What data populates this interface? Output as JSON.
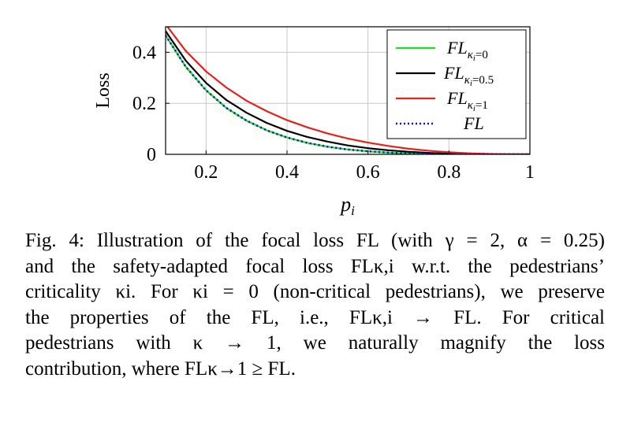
{
  "chart_data": {
    "type": "line",
    "xlabel": "p_i",
    "ylabel": "Loss",
    "xlim": [
      0.1,
      1.0
    ],
    "ylim": [
      0,
      0.5
    ],
    "xticks": [
      0.2,
      0.4,
      0.6,
      0.8,
      1.0
    ],
    "xtick_labels": [
      "0.2",
      "0.4",
      "0.6",
      "0.8",
      "1"
    ],
    "yticks": [
      0,
      0.2,
      0.4
    ],
    "ytick_labels": [
      "0",
      "0.2",
      "0.4"
    ],
    "grid": true,
    "legend_position": "top-right",
    "x": [
      0.1,
      0.15,
      0.2,
      0.25,
      0.3,
      0.35,
      0.4,
      0.45,
      0.5,
      0.55,
      0.6,
      0.65,
      0.7,
      0.75,
      0.8,
      0.85,
      0.9,
      0.95,
      1.0
    ],
    "series": [
      {
        "name": "FL_{κ_i=0}",
        "color": "#22dd22",
        "dash": "solid",
        "values": [
          0.466,
          0.343,
          0.251,
          0.182,
          0.132,
          0.094,
          0.066,
          0.045,
          0.03,
          0.019,
          0.012,
          0.0067,
          0.0036,
          0.0017,
          0.0007,
          0.0002,
          5e-05,
          0.0,
          0.0
        ]
      },
      {
        "name": "FL_{κ_i=0.5}",
        "color": "#000000",
        "dash": "solid",
        "values": [
          0.483,
          0.367,
          0.28,
          0.213,
          0.163,
          0.123,
          0.092,
          0.068,
          0.05,
          0.035,
          0.024,
          0.016,
          0.01,
          0.0056,
          0.0028,
          0.0012,
          0.0004,
          5e-05,
          0.0
        ]
      },
      {
        "name": "FL_{κ_i=1}",
        "color": "#e8201c",
        "dash": "solid",
        "values": [
          0.51,
          0.405,
          0.325,
          0.262,
          0.21,
          0.169,
          0.134,
          0.106,
          0.082,
          0.062,
          0.046,
          0.033,
          0.022,
          0.014,
          0.0082,
          0.004,
          0.0015,
          0.0003,
          0.0
        ]
      },
      {
        "name": "FL",
        "color": "#1010d0",
        "dash": "dotted",
        "values": [
          0.466,
          0.343,
          0.251,
          0.182,
          0.132,
          0.094,
          0.066,
          0.045,
          0.03,
          0.019,
          0.012,
          0.0067,
          0.0036,
          0.0017,
          0.0007,
          0.0002,
          5e-05,
          0.0,
          0.0
        ]
      }
    ]
  },
  "caption": {
    "line1": "Fig. 4: Illustration of the focal loss FL (with γ = 2, α = 0.25)",
    "line2": "and the safety-adapted focal loss FLκ,i w.r.t. the pedestrians’",
    "line3": "criticality κi. For κi = 0 (non-critical pedestrians), we preserve",
    "line4": "the properties of the FL, i.e., FLκ,i → FL. For critical",
    "line5": "pedestrians with κ → 1, we naturally magnify the loss",
    "line6": "contribution, where FLκ→1 ≥ FL."
  }
}
